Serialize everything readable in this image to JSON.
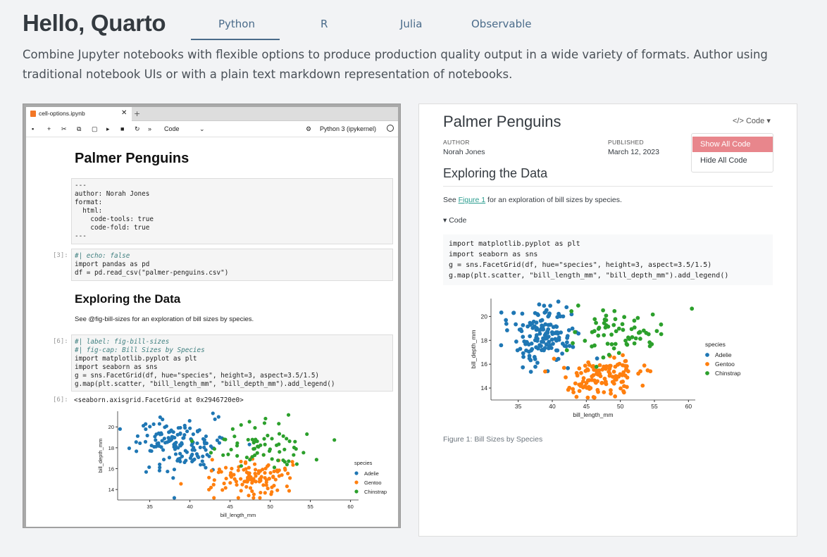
{
  "header": {
    "title": "Hello, Quarto",
    "tabs": [
      "Python",
      "R",
      "Julia",
      "Observable"
    ],
    "active_tab": "Python",
    "description": "Combine Jupyter notebooks with flexible options to produce production quality output in a wide variety of formats. Author using traditional notebook UIs or with a plain text markdown representation of notebooks."
  },
  "jupyter": {
    "tab_title": "cell-options.ipynb",
    "cell_type": "Code",
    "kernel": "Python 3 (ipykernel)",
    "doc_title": "Palmer Penguins",
    "yaml_lines": [
      "---",
      "author: Norah Jones",
      "format:",
      "  html:",
      "    code-tools: true",
      "    code-fold: true",
      "---"
    ],
    "cell1_prompt": "[3]:",
    "cell1_lines": [
      "#| echo: false",
      "import pandas as pd",
      "df = pd.read_csv(\"palmer-penguins.csv\")"
    ],
    "section_title": "Exploring the Data",
    "section_text": "See @fig-bill-sizes for an exploration of bill sizes by species.",
    "cell2_prompt": "[6]:",
    "cell2_lines": [
      "#| label: fig-bill-sizes",
      "#| fig-cap: Bill Sizes by Species",
      "import matplotlib.pyplot as plt",
      "import seaborn as sns",
      "g = sns.FacetGrid(df, hue=\"species\", height=3, aspect=3.5/1.5)",
      "g.map(plt.scatter, \"bill_length_mm\", \"bill_depth_mm\").add_legend()"
    ],
    "out_prompt": "[6]:",
    "output_text": "<seaborn.axisgrid.FacetGrid at 0x2946720e0>"
  },
  "quarto": {
    "title": "Palmer Penguins",
    "author_label": "AUTHOR",
    "author": "Norah Jones",
    "published_label": "PUBLISHED",
    "published": "March 12, 2023",
    "code_button": "</> Code",
    "menu_items": [
      "Show All Code",
      "Hide All Code"
    ],
    "section_title": "Exploring the Data",
    "text_before": "See ",
    "figure_link": "Figure 1",
    "text_after": " for an exploration of bill sizes by species.",
    "fold_label": "▾ Code",
    "caption": "Figure 1: Bill Sizes by Species"
  },
  "chart_data": {
    "type": "scatter",
    "xlabel": "bill_length_mm",
    "ylabel": "bill_depth_mm",
    "xticks": [
      35,
      40,
      45,
      50,
      55,
      60
    ],
    "yticks": [
      14,
      16,
      18,
      20
    ],
    "xlim": [
      31,
      61
    ],
    "ylim": [
      13,
      21.5
    ],
    "legend_title": "species",
    "legend_position": "right",
    "series": [
      {
        "name": "Adelie",
        "color": "#1f77b4",
        "cx": 38.8,
        "cy": 18.3,
        "sx": 2.6,
        "sy": 1.2,
        "n": 150
      },
      {
        "name": "Gentoo",
        "color": "#ff7f0e",
        "cx": 47.5,
        "cy": 15.0,
        "sx": 3.0,
        "sy": 0.95,
        "n": 120
      },
      {
        "name": "Chinstrap",
        "color": "#2ca02c",
        "cx": 48.8,
        "cy": 18.4,
        "sx": 3.2,
        "sy": 1.1,
        "n": 68
      }
    ]
  }
}
